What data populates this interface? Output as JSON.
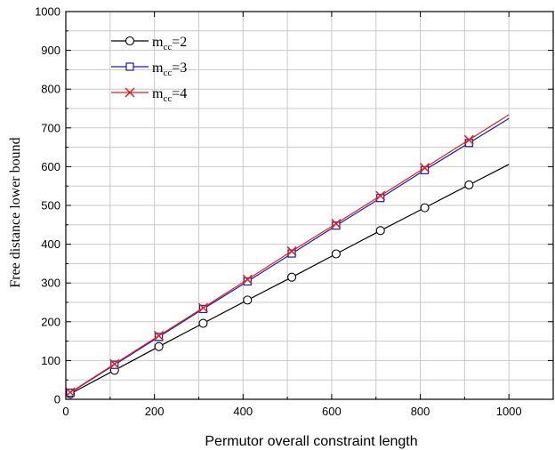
{
  "chart_data": {
    "type": "line",
    "title": "",
    "xlabel": "Permutor overall constraint length",
    "ylabel": "Free distance lower bound",
    "xlim": [
      0,
      1100
    ],
    "ylim": [
      0,
      1000
    ],
    "x_ticks": [
      0,
      200,
      400,
      600,
      800,
      1000
    ],
    "y_ticks": [
      0,
      100,
      200,
      300,
      400,
      500,
      600,
      700,
      800,
      900,
      1000
    ],
    "grid": true,
    "legend_position": "top-left",
    "series": [
      {
        "name": "m_cc=2",
        "legend_main": "m",
        "legend_sub": "cc",
        "legend_suffix": "=2",
        "color": "#000000",
        "marker": "circle",
        "x": [
          10,
          110,
          210,
          310,
          410,
          510,
          610,
          710,
          810,
          910,
          1000
        ],
        "y": [
          14,
          75,
          136,
          196,
          256,
          315,
          375,
          435,
          494,
          553,
          606
        ]
      },
      {
        "name": "m_cc=3",
        "legend_main": "m",
        "legend_sub": "cc",
        "legend_suffix": "=3",
        "color": "#1a1aa8",
        "marker": "square",
        "x": [
          10,
          110,
          210,
          310,
          410,
          510,
          610,
          710,
          810,
          910,
          1000
        ],
        "y": [
          17,
          89,
          161,
          233,
          304,
          376,
          448,
          519,
          591,
          661,
          724
        ]
      },
      {
        "name": "m_cc=4",
        "legend_main": "m",
        "legend_sub": "cc",
        "legend_suffix": "=4",
        "color": "#e02020",
        "marker": "x",
        "x": [
          10,
          110,
          210,
          310,
          410,
          510,
          610,
          710,
          810,
          910,
          1000
        ],
        "y": [
          18,
          91,
          164,
          236,
          309,
          382,
          453,
          525,
          597,
          669,
          734
        ]
      }
    ]
  }
}
